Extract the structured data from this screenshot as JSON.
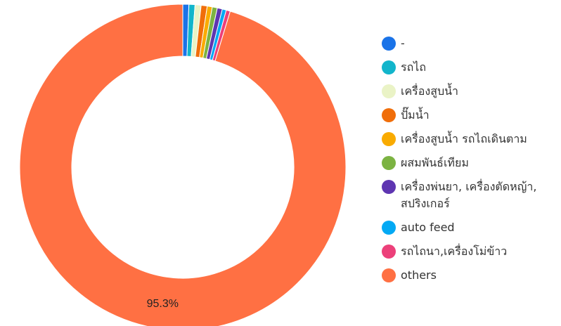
{
  "chart_data": {
    "type": "pie",
    "donut": true,
    "legend_position": "right",
    "series": [
      {
        "name": "-",
        "value": 0.6,
        "color": "#1a73e8"
      },
      {
        "name": "รถไถ",
        "value": 0.6,
        "color": "#12b5cb"
      },
      {
        "name": "เครื่องสูบน้ำ",
        "value": 0.6,
        "color": "#eaf3c6"
      },
      {
        "name": "ปั๊มน้ำ",
        "value": 0.6,
        "color": "#f06e0a"
      },
      {
        "name": "เครื่องสูบน้ำ รถไถเดินตาม",
        "value": 0.5,
        "color": "#f9ab00"
      },
      {
        "name": "ผสมพันธ์เทียม",
        "value": 0.5,
        "color": "#7cb342"
      },
      {
        "name": "เครื่องพ่นยา, เครื่องตัดหญ้า, สปริงเกอร์",
        "value": 0.5,
        "color": "#5e35b1"
      },
      {
        "name": "auto feed",
        "value": 0.4,
        "color": "#03a9f4"
      },
      {
        "name": "รถไถนา,เครื่องโม่ข้าว",
        "value": 0.4,
        "color": "#ec407a"
      },
      {
        "name": "others",
        "value": 95.3,
        "color": "#ff7043"
      }
    ],
    "data_labels": [
      "",
      "",
      "",
      "",
      "",
      "",
      "",
      "",
      "",
      "95.3%"
    ]
  }
}
